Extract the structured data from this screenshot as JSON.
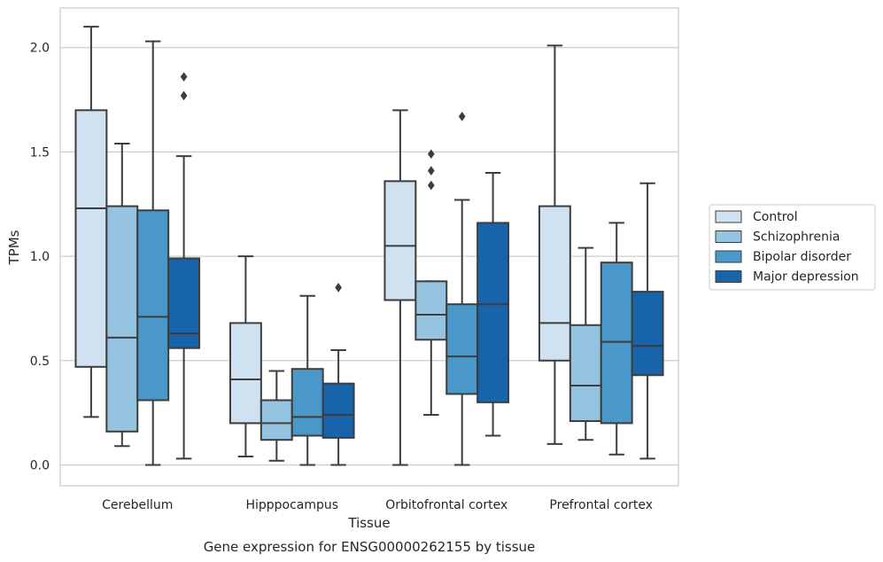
{
  "caption": "Gene expression for ENSG00000262155 by tissue",
  "chart_data": {
    "type": "box",
    "xlabel": "Tissue",
    "ylabel": "TPMs",
    "ylim": [
      -0.1,
      2.19
    ],
    "yticks": [
      0.0,
      0.5,
      1.0,
      1.5,
      2.0
    ],
    "ytick_labels": [
      "0.0",
      "0.5",
      "1.0",
      "1.5",
      "2.0"
    ],
    "grid": "horizontal",
    "legend_position": "right",
    "categories": [
      "Cerebellum",
      "Hipppocampus",
      "Orbitofrontal cortex",
      "Prefrontal cortex"
    ],
    "series": [
      {
        "name": "Control",
        "color": "#d0e1f2",
        "boxes": [
          {
            "whisker_low": 0.23,
            "q1": 0.47,
            "median": 1.23,
            "q3": 1.7,
            "whisker_high": 2.1,
            "outliers": []
          },
          {
            "whisker_low": 0.04,
            "q1": 0.2,
            "median": 0.41,
            "q3": 0.68,
            "whisker_high": 1.0,
            "outliers": []
          },
          {
            "whisker_low": 0.0,
            "q1": 0.79,
            "median": 1.05,
            "q3": 1.36,
            "whisker_high": 1.7,
            "outliers": []
          },
          {
            "whisker_low": 0.1,
            "q1": 0.5,
            "median": 0.68,
            "q3": 1.24,
            "whisker_high": 2.01,
            "outliers": []
          }
        ]
      },
      {
        "name": "Schizophrenia",
        "color": "#94c4df",
        "boxes": [
          {
            "whisker_low": 0.09,
            "q1": 0.16,
            "median": 0.61,
            "q3": 1.24,
            "whisker_high": 1.54,
            "outliers": []
          },
          {
            "whisker_low": 0.02,
            "q1": 0.12,
            "median": 0.2,
            "q3": 0.31,
            "whisker_high": 0.45,
            "outliers": []
          },
          {
            "whisker_low": 0.24,
            "q1": 0.6,
            "median": 0.72,
            "q3": 0.88,
            "whisker_high": 0.88,
            "outliers": [
              1.34,
              1.41,
              1.49
            ]
          },
          {
            "whisker_low": 0.12,
            "q1": 0.21,
            "median": 0.38,
            "q3": 0.67,
            "whisker_high": 1.04,
            "outliers": []
          }
        ]
      },
      {
        "name": "Bipolar disorder",
        "color": "#4a98c9",
        "boxes": [
          {
            "whisker_low": 0.0,
            "q1": 0.31,
            "median": 0.71,
            "q3": 1.22,
            "whisker_high": 2.03,
            "outliers": []
          },
          {
            "whisker_low": 0.0,
            "q1": 0.14,
            "median": 0.23,
            "q3": 0.46,
            "whisker_high": 0.81,
            "outliers": []
          },
          {
            "whisker_low": 0.0,
            "q1": 0.34,
            "median": 0.52,
            "q3": 0.77,
            "whisker_high": 1.27,
            "outliers": [
              1.67
            ]
          },
          {
            "whisker_low": 0.05,
            "q1": 0.2,
            "median": 0.59,
            "q3": 0.97,
            "whisker_high": 1.16,
            "outliers": []
          }
        ]
      },
      {
        "name": "Major depression",
        "color": "#1764ab",
        "boxes": [
          {
            "whisker_low": 0.03,
            "q1": 0.56,
            "median": 0.63,
            "q3": 0.99,
            "whisker_high": 1.48,
            "outliers": [
              1.77,
              1.86
            ]
          },
          {
            "whisker_low": 0.0,
            "q1": 0.13,
            "median": 0.24,
            "q3": 0.39,
            "whisker_high": 0.55,
            "outliers": [
              0.85
            ]
          },
          {
            "whisker_low": 0.14,
            "q1": 0.3,
            "median": 0.77,
            "q3": 1.16,
            "whisker_high": 1.4,
            "outliers": []
          },
          {
            "whisker_low": 0.03,
            "q1": 0.43,
            "median": 0.57,
            "q3": 0.83,
            "whisker_high": 1.35,
            "outliers": []
          }
        ]
      }
    ]
  }
}
